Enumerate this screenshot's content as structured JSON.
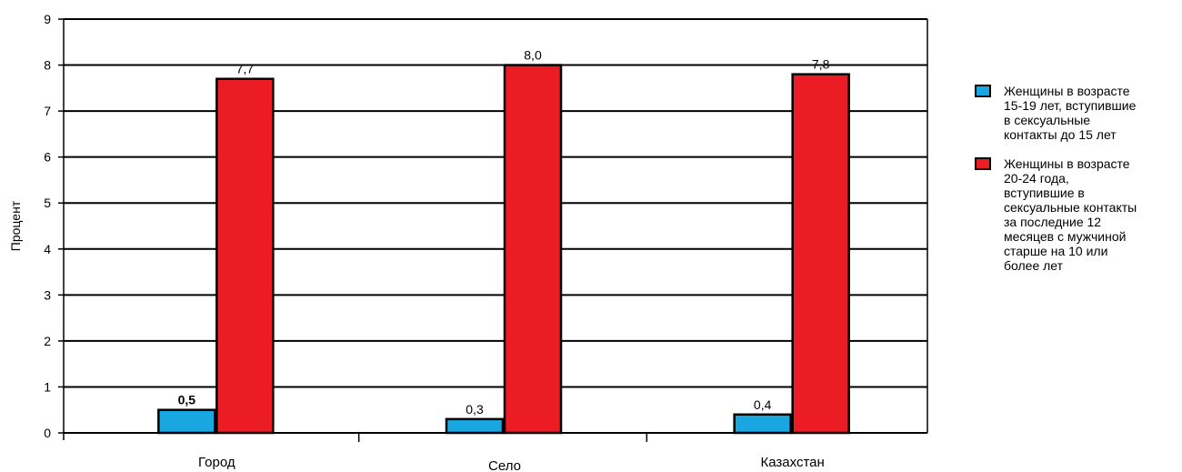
{
  "chart_data": {
    "type": "bar",
    "categories": [
      "Город",
      "Село",
      "Казахстан"
    ],
    "series": [
      {
        "name": "Женщины в возрасте\n15-19 лет, вступившие\nв сексуальные\nконтакты до 15 лет",
        "values": [
          0.5,
          0.3,
          0.4
        ],
        "labels": [
          "0,5",
          "0,3",
          "0,4"
        ],
        "color": "#18a7e0"
      },
      {
        "name": "Женщины в возрасте\n20-24 года,\nвступившие в\nсексуальные контакты\nза последние 12\nмесяцев с мужчиной\nстарше на 10 или\nболее лет",
        "values": [
          7.7,
          8.0,
          7.8
        ],
        "labels": [
          "7,7",
          "8,0",
          "7,8"
        ],
        "color": "#ec1c24"
      }
    ],
    "ylabel": "Процент",
    "xlabel": "",
    "ylim": [
      0,
      9
    ],
    "yticks": [
      "0",
      "1",
      "2",
      "3",
      "4",
      "5",
      "6",
      "7",
      "8",
      "9"
    ],
    "grid": true,
    "legend_position": "right"
  }
}
